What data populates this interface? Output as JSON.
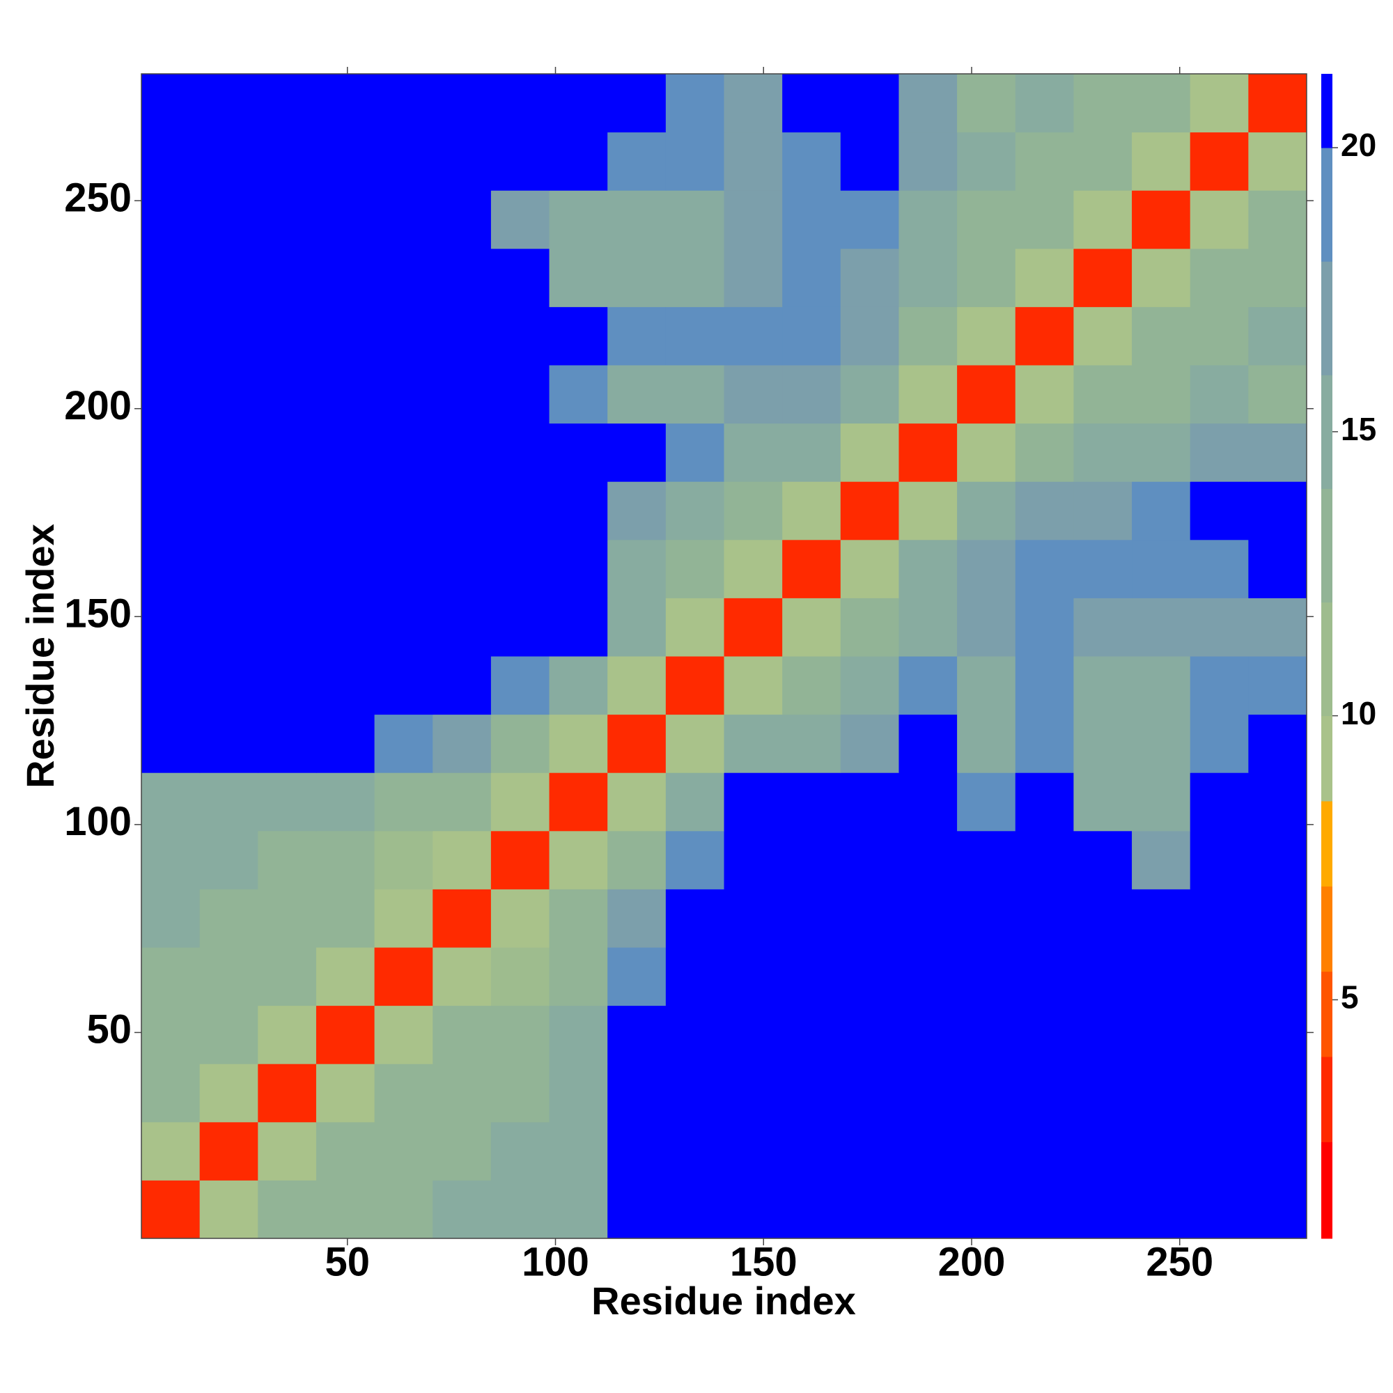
{
  "chart_data": {
    "type": "heatmap",
    "xlabel": "Residue index",
    "ylabel": "Residue index",
    "xlim": [
      0.5,
      280.5
    ],
    "ylim": [
      0.5,
      280.5
    ],
    "xticks": [
      50,
      100,
      150,
      200,
      250
    ],
    "yticks": [
      50,
      100,
      150,
      200,
      250
    ],
    "xbins": [
      0.5,
      14.5,
      28.5,
      42.5,
      56.5,
      70.5,
      84.5,
      98.5,
      112.5,
      126.5,
      140.5,
      154.5,
      168.5,
      182.5,
      196.5,
      210.5,
      224.5,
      238.5,
      252.5,
      266.5,
      280.5
    ],
    "ybins": [
      0.5,
      14.5,
      28.5,
      42.5,
      56.5,
      70.5,
      84.5,
      98.5,
      112.5,
      126.5,
      140.5,
      154.5,
      168.5,
      182.5,
      196.5,
      210.5,
      224.5,
      238.5,
      252.5,
      266.5,
      280.5
    ],
    "z": [
      [
        4,
        9,
        13,
        14,
        14,
        15,
        15,
        16,
        21,
        21,
        21,
        21,
        21,
        21,
        21,
        21,
        21,
        21,
        21,
        21
      ],
      [
        9,
        4,
        9,
        13,
        14,
        14,
        15,
        16,
        21,
        21,
        21,
        21,
        21,
        21,
        21,
        21,
        21,
        21,
        21,
        21
      ],
      [
        13,
        9,
        4,
        9,
        13,
        14,
        14,
        16,
        21,
        21,
        21,
        21,
        21,
        21,
        21,
        21,
        21,
        21,
        21,
        21
      ],
      [
        14,
        13,
        9,
        4,
        9,
        13,
        14,
        15,
        21,
        21,
        21,
        21,
        21,
        21,
        21,
        21,
        21,
        21,
        21,
        21
      ],
      [
        14,
        14,
        13,
        9,
        4,
        9,
        12,
        14,
        20,
        21,
        21,
        21,
        21,
        21,
        21,
        21,
        21,
        21,
        21,
        21
      ],
      [
        15,
        14,
        14,
        13,
        9,
        4,
        9,
        13,
        18,
        21,
        21,
        21,
        21,
        21,
        21,
        21,
        21,
        21,
        21,
        21
      ],
      [
        15,
        15,
        14,
        14,
        12,
        9,
        4,
        9,
        14,
        19,
        21,
        21,
        21,
        21,
        21,
        21,
        21,
        18,
        21,
        21
      ],
      [
        16,
        16,
        16,
        15,
        14,
        13,
        9,
        4,
        9,
        15,
        21,
        21,
        21,
        21,
        19,
        21,
        15,
        15,
        21,
        21
      ],
      [
        21,
        21,
        21,
        21,
        20,
        18,
        14,
        9,
        4,
        9,
        15,
        16,
        18,
        21,
        16,
        19,
        15,
        16,
        19,
        21
      ],
      [
        21,
        21,
        21,
        21,
        21,
        21,
        19,
        15,
        9,
        4,
        9,
        14,
        16,
        20,
        16,
        19,
        16,
        16,
        19,
        19
      ],
      [
        21,
        21,
        21,
        21,
        21,
        21,
        21,
        21,
        15,
        9,
        4,
        9,
        13,
        16,
        17,
        19,
        17,
        17,
        18,
        17
      ],
      [
        21,
        21,
        21,
        21,
        21,
        21,
        21,
        21,
        16,
        14,
        9,
        4,
        9,
        15,
        17,
        19,
        19,
        19,
        19,
        21
      ],
      [
        21,
        21,
        21,
        21,
        21,
        21,
        21,
        21,
        18,
        16,
        13,
        9,
        4,
        9,
        15,
        18,
        18,
        19,
        21,
        21
      ],
      [
        21,
        21,
        21,
        21,
        21,
        21,
        21,
        21,
        21,
        20,
        16,
        15,
        9,
        4,
        9,
        14,
        15,
        16,
        17,
        17
      ],
      [
        21,
        21,
        21,
        21,
        21,
        21,
        21,
        19,
        16,
        16,
        17,
        17,
        15,
        9,
        4,
        9,
        13,
        14,
        15,
        14
      ],
      [
        21,
        21,
        21,
        21,
        21,
        21,
        21,
        21,
        19,
        19,
        19,
        19,
        18,
        14,
        9,
        4,
        9,
        13,
        14,
        15
      ],
      [
        21,
        21,
        21,
        21,
        21,
        21,
        21,
        15,
        15,
        16,
        17,
        19,
        18,
        15,
        13,
        9,
        4,
        9,
        13,
        14
      ],
      [
        21,
        21,
        21,
        21,
        21,
        21,
        18,
        15,
        16,
        16,
        17,
        19,
        19,
        16,
        14,
        13,
        9,
        4,
        9,
        13
      ],
      [
        21,
        21,
        21,
        21,
        21,
        21,
        21,
        21,
        19,
        19,
        18,
        19,
        21,
        17,
        15,
        14,
        13,
        9,
        4,
        9
      ],
      [
        21,
        21,
        21,
        21,
        21,
        21,
        21,
        21,
        21,
        19,
        17,
        21,
        21,
        17,
        14,
        15,
        14,
        13,
        9,
        4
      ]
    ],
    "clim": [
      0.8,
      21.3
    ],
    "cticks": [
      5,
      10,
      15,
      20
    ],
    "color_bounds": [
      0.8,
      2.5,
      4,
      5.5,
      7,
      8.5,
      10,
      12,
      14,
      16,
      18,
      20,
      21.3
    ],
    "colors": [
      "#ff0000",
      "#ff2a00",
      "#ff5500",
      "#ff8000",
      "#ffaa00",
      "#a9c28a",
      "#9ebc8e",
      "#92b496",
      "#88aca0",
      "#7c9fab",
      "#5f8fc0",
      "#0000ff"
    ]
  }
}
